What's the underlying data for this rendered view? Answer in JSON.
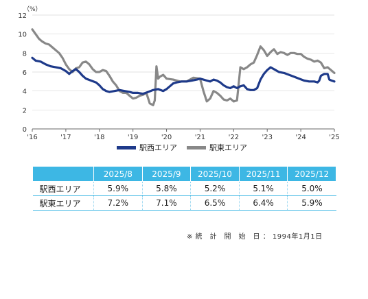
{
  "chart_data": {
    "type": "line",
    "unit_label": "（%）",
    "ylim": [
      0,
      12
    ],
    "yticks": [
      0,
      2,
      4,
      6,
      8,
      10,
      12
    ],
    "xlim": [
      2016.0,
      2025.0
    ],
    "xticks": [
      {
        "v": 2016,
        "label": "'16"
      },
      {
        "v": 2017,
        "label": "'17"
      },
      {
        "v": 2018,
        "label": "'18"
      },
      {
        "v": 2019,
        "label": "'19"
      },
      {
        "v": 2020,
        "label": "'20"
      },
      {
        "v": 2021,
        "label": "'21"
      },
      {
        "v": 2022,
        "label": "'22"
      },
      {
        "v": 2023,
        "label": "'23"
      },
      {
        "v": 2024,
        "label": "'24"
      },
      {
        "v": 2025,
        "label": "'25"
      }
    ],
    "grid": "horizontal",
    "series": [
      {
        "name": "駅西エリア",
        "color": "#1e3a8a",
        "points": [
          [
            2016.0,
            7.5
          ],
          [
            2016.1,
            7.2
          ],
          [
            2016.25,
            7.1
          ],
          [
            2016.4,
            6.8
          ],
          [
            2016.55,
            6.6
          ],
          [
            2016.7,
            6.5
          ],
          [
            2016.85,
            6.4
          ],
          [
            2017.0,
            6.1
          ],
          [
            2017.1,
            5.8
          ],
          [
            2017.2,
            6.1
          ],
          [
            2017.3,
            6.3
          ],
          [
            2017.4,
            6.0
          ],
          [
            2017.5,
            5.6
          ],
          [
            2017.6,
            5.3
          ],
          [
            2017.75,
            5.1
          ],
          [
            2017.9,
            4.9
          ],
          [
            2018.0,
            4.6
          ],
          [
            2018.1,
            4.2
          ],
          [
            2018.2,
            4.0
          ],
          [
            2018.3,
            3.9
          ],
          [
            2018.45,
            4.0
          ],
          [
            2018.6,
            4.1
          ],
          [
            2018.75,
            4.0
          ],
          [
            2018.9,
            3.9
          ],
          [
            2019.0,
            3.8
          ],
          [
            2019.15,
            3.8
          ],
          [
            2019.3,
            3.7
          ],
          [
            2019.45,
            3.9
          ],
          [
            2019.6,
            4.1
          ],
          [
            2019.75,
            4.2
          ],
          [
            2019.9,
            4.0
          ],
          [
            2020.0,
            4.2
          ],
          [
            2020.1,
            4.5
          ],
          [
            2020.2,
            4.8
          ],
          [
            2020.3,
            4.9
          ],
          [
            2020.45,
            5.0
          ],
          [
            2020.6,
            5.0
          ],
          [
            2020.75,
            5.1
          ],
          [
            2020.9,
            5.2
          ],
          [
            2021.0,
            5.3
          ],
          [
            2021.1,
            5.2
          ],
          [
            2021.2,
            5.1
          ],
          [
            2021.3,
            5.0
          ],
          [
            2021.4,
            5.2
          ],
          [
            2021.5,
            5.1
          ],
          [
            2021.6,
            4.9
          ],
          [
            2021.7,
            4.6
          ],
          [
            2021.8,
            4.4
          ],
          [
            2021.9,
            4.3
          ],
          [
            2022.0,
            4.5
          ],
          [
            2022.1,
            4.3
          ],
          [
            2022.2,
            4.5
          ],
          [
            2022.3,
            4.6
          ],
          [
            2022.4,
            4.2
          ],
          [
            2022.5,
            4.1
          ],
          [
            2022.6,
            4.1
          ],
          [
            2022.7,
            4.3
          ],
          [
            2022.8,
            5.2
          ],
          [
            2022.9,
            5.8
          ],
          [
            2023.0,
            6.2
          ],
          [
            2023.1,
            6.5
          ],
          [
            2023.2,
            6.3
          ],
          [
            2023.35,
            6.0
          ],
          [
            2023.5,
            5.9
          ],
          [
            2023.65,
            5.7
          ],
          [
            2023.8,
            5.5
          ],
          [
            2023.95,
            5.3
          ],
          [
            2024.1,
            5.1
          ],
          [
            2024.25,
            5.0
          ],
          [
            2024.4,
            5.0
          ],
          [
            2024.5,
            4.9
          ],
          [
            2024.55,
            5.1
          ],
          [
            2024.6,
            5.6
          ],
          [
            2024.7,
            5.8
          ],
          [
            2024.8,
            5.8
          ],
          [
            2024.85,
            5.2
          ],
          [
            2024.92,
            5.1
          ],
          [
            2025.0,
            5.0
          ]
        ]
      },
      {
        "name": "駅東エリア",
        "color": "#888888",
        "points": [
          [
            2016.0,
            10.5
          ],
          [
            2016.1,
            10.0
          ],
          [
            2016.2,
            9.5
          ],
          [
            2016.3,
            9.2
          ],
          [
            2016.4,
            9.0
          ],
          [
            2016.5,
            8.9
          ],
          [
            2016.6,
            8.6
          ],
          [
            2016.7,
            8.3
          ],
          [
            2016.8,
            8.0
          ],
          [
            2016.9,
            7.5
          ],
          [
            2017.0,
            6.8
          ],
          [
            2017.1,
            6.3
          ],
          [
            2017.2,
            6.0
          ],
          [
            2017.3,
            6.4
          ],
          [
            2017.4,
            6.5
          ],
          [
            2017.5,
            7.0
          ],
          [
            2017.6,
            7.1
          ],
          [
            2017.7,
            6.8
          ],
          [
            2017.8,
            6.3
          ],
          [
            2017.9,
            6.0
          ],
          [
            2018.0,
            6.0
          ],
          [
            2018.1,
            6.2
          ],
          [
            2018.2,
            6.1
          ],
          [
            2018.3,
            5.6
          ],
          [
            2018.4,
            5.0
          ],
          [
            2018.5,
            4.6
          ],
          [
            2018.6,
            4.0
          ],
          [
            2018.7,
            3.8
          ],
          [
            2018.8,
            3.8
          ],
          [
            2018.9,
            3.5
          ],
          [
            2019.0,
            3.2
          ],
          [
            2019.1,
            3.3
          ],
          [
            2019.2,
            3.5
          ],
          [
            2019.3,
            3.6
          ],
          [
            2019.4,
            3.8
          ],
          [
            2019.5,
            2.7
          ],
          [
            2019.6,
            2.5
          ],
          [
            2019.65,
            3.0
          ],
          [
            2019.7,
            6.6
          ],
          [
            2019.75,
            5.3
          ],
          [
            2019.8,
            5.5
          ],
          [
            2019.9,
            5.7
          ],
          [
            2020.0,
            5.3
          ],
          [
            2020.2,
            5.2
          ],
          [
            2020.4,
            5.0
          ],
          [
            2020.6,
            5.0
          ],
          [
            2020.8,
            5.4
          ],
          [
            2021.0,
            5.3
          ],
          [
            2021.1,
            4.0
          ],
          [
            2021.2,
            2.9
          ],
          [
            2021.3,
            3.2
          ],
          [
            2021.4,
            4.0
          ],
          [
            2021.5,
            3.8
          ],
          [
            2021.6,
            3.5
          ],
          [
            2021.7,
            3.1
          ],
          [
            2021.8,
            3.0
          ],
          [
            2021.9,
            3.2
          ],
          [
            2022.0,
            2.9
          ],
          [
            2022.1,
            3.0
          ],
          [
            2022.2,
            6.5
          ],
          [
            2022.3,
            6.3
          ],
          [
            2022.4,
            6.5
          ],
          [
            2022.5,
            6.8
          ],
          [
            2022.6,
            7.0
          ],
          [
            2022.7,
            7.8
          ],
          [
            2022.8,
            8.7
          ],
          [
            2022.9,
            8.3
          ],
          [
            2023.0,
            7.7
          ],
          [
            2023.1,
            8.1
          ],
          [
            2023.2,
            8.4
          ],
          [
            2023.3,
            7.9
          ],
          [
            2023.4,
            8.1
          ],
          [
            2023.5,
            8.0
          ],
          [
            2023.6,
            7.8
          ],
          [
            2023.7,
            8.0
          ],
          [
            2023.8,
            8.0
          ],
          [
            2023.9,
            7.9
          ],
          [
            2024.0,
            7.9
          ],
          [
            2024.1,
            7.6
          ],
          [
            2024.2,
            7.4
          ],
          [
            2024.3,
            7.3
          ],
          [
            2024.4,
            7.1
          ],
          [
            2024.5,
            7.2
          ],
          [
            2024.6,
            7.0
          ],
          [
            2024.7,
            6.4
          ],
          [
            2024.8,
            6.5
          ],
          [
            2024.9,
            6.2
          ],
          [
            2025.0,
            5.9
          ]
        ]
      }
    ]
  },
  "legend": {
    "west_label": "駅西エリア",
    "east_label": "駅東エリア",
    "west_color": "#1e3a8a",
    "east_color": "#888888"
  },
  "table": {
    "headers": [
      "",
      "2025/8",
      "2025/9",
      "2025/10",
      "2025/11",
      "2025/12"
    ],
    "rows": [
      {
        "label": "駅西エリア",
        "values": [
          "5.9%",
          "5.8%",
          "5.2%",
          "5.1%",
          "5.0%"
        ]
      },
      {
        "label": "駅東エリア",
        "values": [
          "7.2%",
          "7.1%",
          "6.5%",
          "6.4%",
          "5.9%"
        ]
      }
    ]
  },
  "note": "※ 統　計　開　始　日 ： 1994年1月1日"
}
